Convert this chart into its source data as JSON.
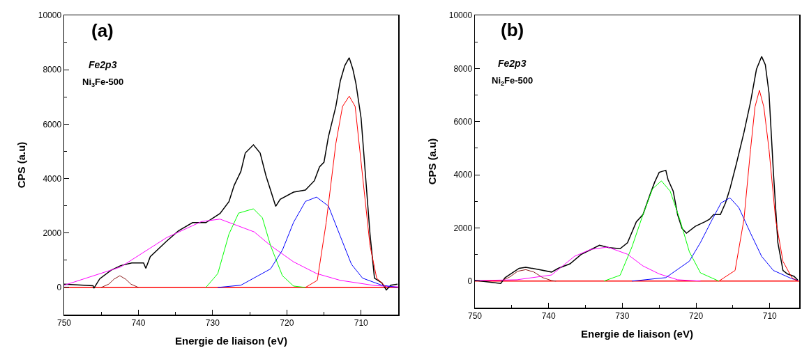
{
  "chart_data": [
    {
      "type": "line",
      "xlabel": "Energie de liaison (eV)",
      "ylabel": "CPS (a.u)",
      "annotations": [
        "(a)",
        "Fe2p3",
        "Ni$_{3}$Fe-500"
      ],
      "xlim": [
        750,
        705
      ],
      "ylim": [
        -1000,
        10000
      ],
      "xticks": [
        750,
        {
          "value": 745,
          "label": null
        },
        740,
        {
          "value": 735,
          "label": null
        },
        730,
        {
          "value": 725,
          "label": null
        },
        720,
        {
          "value": 715,
          "label": null
        },
        710
      ],
      "yticks": [
        0,
        {
          "value": 1000,
          "label": null
        },
        2000,
        {
          "value": 3000,
          "label": null
        },
        4000,
        {
          "value": 5000,
          "label": null
        },
        6000,
        {
          "value": 7000,
          "label": null
        },
        8000,
        {
          "value": 9000,
          "label": null
        },
        10000
      ],
      "grid": false,
      "marker": "none",
      "line_style": "solid",
      "series": [
        {
          "color": "#000000",
          "x": [
            750,
            746.1,
            746.0,
            745.2,
            743.7,
            742.4,
            740.9,
            739.3,
            739.0,
            738.4,
            736.2,
            734.6,
            732.7,
            730.9,
            729.0,
            727.8,
            727.1,
            726.2,
            725.6,
            724.5,
            723.6,
            722.8,
            722.2,
            721.5,
            720.9,
            719.1,
            717.5,
            716.3,
            715.6,
            715.0,
            714.4,
            713.4,
            712.8,
            712.2,
            711.6,
            711.1,
            710.7,
            710.0,
            709.4,
            708.8,
            708.2,
            707.2,
            706.6,
            706.0,
            705.1
          ],
          "values": [
            120,
            60,
            -30,
            320,
            630,
            800,
            900,
            900,
            700,
            1130,
            1700,
            2080,
            2380,
            2380,
            2720,
            3150,
            3750,
            4260,
            4940,
            5240,
            4940,
            4090,
            3580,
            2980,
            3240,
            3500,
            3580,
            3920,
            4430,
            4600,
            5540,
            6650,
            7590,
            8150,
            8440,
            8010,
            7500,
            6220,
            4090,
            1960,
            340,
            170,
            -90,
            80,
            120
          ]
        },
        {
          "color": "#8b1a1a",
          "x": [
            745,
            744,
            743.3,
            742.5,
            741.7,
            741,
            740
          ],
          "values": [
            0,
            120,
            300,
            430,
            300,
            120,
            0
          ]
        },
        {
          "color": "#ff00ff",
          "x": [
            750,
            742.4,
            736.2,
            731.5,
            729,
            724.4,
            722.2,
            719.1,
            716,
            712.8,
            708.2,
            705
          ],
          "values": [
            80,
            750,
            1830,
            2420,
            2510,
            2040,
            1540,
            940,
            510,
            260,
            70,
            20
          ]
        },
        {
          "color": "#00ff00",
          "x": [
            730.9,
            729.3,
            727.8,
            726.5,
            724.5,
            723.3,
            722.2,
            720.6,
            719.1,
            717.5
          ],
          "values": [
            0,
            510,
            1960,
            2730,
            2890,
            2560,
            1540,
            430,
            50,
            0
          ]
        },
        {
          "color": "#0000ff",
          "x": [
            729.3,
            726.2,
            722.2,
            720.6,
            719.1,
            717.5,
            716,
            714.4,
            712.8,
            711.3,
            709.8,
            707.2,
            705.1
          ],
          "values": [
            0,
            80,
            680,
            1370,
            2390,
            3160,
            3320,
            2990,
            1880,
            850,
            340,
            80,
            0
          ]
        },
        {
          "color": "#ff0000",
          "x": [
            717.5,
            715.9,
            714.7,
            713.4,
            712.5,
            711.6,
            710.8,
            709.8,
            708.8,
            707.9,
            706.6
          ],
          "values": [
            0,
            260,
            2390,
            5290,
            6650,
            7030,
            6650,
            4090,
            1540,
            340,
            0
          ]
        }
      ],
      "ref_lines": [
        {
          "axis": "y",
          "value": 0,
          "color": "#ff0000"
        }
      ]
    },
    {
      "type": "line",
      "xlabel": "Energie de liaison (eV)",
      "ylabel": "CPS (a.u)",
      "annotations": [
        "(b)",
        "Fe2p3",
        "Ni$_{2}$Fe-500"
      ],
      "xlim": [
        750,
        706
      ],
      "ylim": [
        -1000,
        10000
      ],
      "xticks": [
        750,
        {
          "value": 745,
          "label": null
        },
        740,
        {
          "value": 735,
          "label": null
        },
        730,
        {
          "value": 725,
          "label": null
        },
        720,
        {
          "value": 715,
          "label": null
        },
        710
      ],
      "yticks": [
        0,
        {
          "value": 1000,
          "label": null
        },
        2000,
        {
          "value": 3000,
          "label": null
        },
        4000,
        {
          "value": 5000,
          "label": null
        },
        6000,
        {
          "value": 7000,
          "label": null
        },
        8000,
        {
          "value": 9000,
          "label": null
        },
        10000
      ],
      "grid": false,
      "marker": "none",
      "line_style": "solid",
      "series": [
        {
          "color": "#000000",
          "x": [
            750,
            746.5,
            745.9,
            744.0,
            743.1,
            741.2,
            739.6,
            738.7,
            737.1,
            735.6,
            734.3,
            733.1,
            731.8,
            730.3,
            729.3,
            728.1,
            727.2,
            726.2,
            725.6,
            725.0,
            724.1,
            723.8,
            723.1,
            722.5,
            721.9,
            721.3,
            720.1,
            718.8,
            718.2,
            717.6,
            716.7,
            716.0,
            715.4,
            714.5,
            713.5,
            712.6,
            711.8,
            711.1,
            710.6,
            710.1,
            709.5,
            708.9,
            708.2,
            707.6,
            706.7,
            706.2
          ],
          "values": [
            30,
            -90,
            130,
            480,
            520,
            430,
            340,
            480,
            650,
            1000,
            1180,
            1350,
            1260,
            1220,
            1440,
            2230,
            2500,
            3290,
            3730,
            4090,
            4170,
            3820,
            3390,
            2500,
            1980,
            1800,
            2060,
            2230,
            2320,
            2500,
            2500,
            2940,
            3470,
            4440,
            5590,
            6740,
            7970,
            8450,
            8140,
            7080,
            4090,
            1450,
            400,
            270,
            180,
            40
          ]
        },
        {
          "color": "#8b1a1a",
          "x": [
            746.5,
            745.3,
            744.2,
            743.1,
            742,
            740.8,
            739.6,
            739
          ],
          "values": [
            0,
            150,
            370,
            430,
            340,
            130,
            20,
            0
          ]
        },
        {
          "color": "#ff00ff",
          "x": [
            750,
            744.3,
            739.6,
            736.5,
            734.3,
            732,
            729.3,
            727.2,
            725,
            722.5,
            719.4
          ],
          "values": [
            20,
            50,
            230,
            930,
            1190,
            1280,
            1010,
            570,
            270,
            50,
            0
          ]
        },
        {
          "color": "#00ff00",
          "x": [
            732.5,
            730.3,
            728.7,
            727.2,
            725.9,
            724.7,
            723.5,
            722.2,
            720.9,
            719.4,
            716.9
          ],
          "values": [
            0,
            220,
            1280,
            2500,
            3470,
            3770,
            3380,
            2320,
            1100,
            310,
            0
          ]
        },
        {
          "color": "#0000ff",
          "x": [
            728.7,
            724.1,
            720.9,
            719.4,
            717.8,
            716.6,
            715.4,
            714.2,
            712.6,
            711.1,
            709.5,
            707,
            706.2
          ],
          "values": [
            0,
            130,
            750,
            1450,
            2320,
            2940,
            3130,
            2770,
            1800,
            930,
            400,
            90,
            30
          ]
        },
        {
          "color": "#ff0000",
          "x": [
            716.9,
            714.7,
            713.5,
            712.6,
            712,
            711.4,
            710.8,
            710.1,
            709.2,
            708.2,
            707,
            706.2
          ],
          "values": [
            0,
            400,
            2320,
            4960,
            6550,
            7180,
            6550,
            4960,
            2320,
            740,
            130,
            0
          ]
        }
      ],
      "ref_lines": [
        {
          "axis": "y",
          "value": 0,
          "color": "#ff0000"
        }
      ]
    }
  ]
}
